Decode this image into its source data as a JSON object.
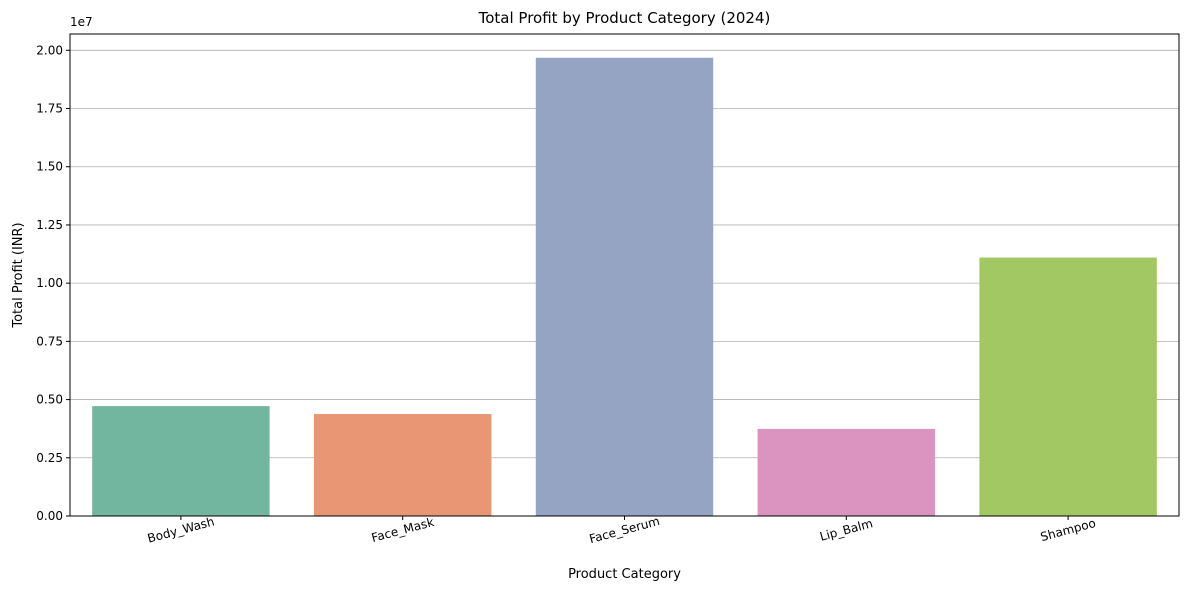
{
  "chart_data": {
    "type": "bar",
    "title": "Total Profit by Product Category (2024)",
    "xlabel": "Product Category",
    "ylabel": "Total Profit (INR)",
    "y_offset_label": "1e7",
    "y_scale": 10000000,
    "categories": [
      "Body_Wash",
      "Face_Mask",
      "Face_Serum",
      "Lip_Balm",
      "Shampoo"
    ],
    "values": [
      4720000,
      4380000,
      19680000,
      3740000,
      11100000
    ],
    "colors": [
      "#73b6a0",
      "#e89673",
      "#94a4c2",
      "#db94bf",
      "#a2c864"
    ],
    "ylim": [
      0,
      20700000
    ],
    "y_ticks": [
      0,
      2500000,
      5000000,
      7500000,
      10000000,
      12500000,
      15000000,
      17500000,
      20000000
    ],
    "y_tick_labels": [
      "0.00",
      "0.25",
      "0.50",
      "0.75",
      "1.00",
      "1.25",
      "1.50",
      "1.75",
      "2.00"
    ],
    "x_tick_rotation": -15,
    "grid": "y",
    "legend": "none"
  }
}
